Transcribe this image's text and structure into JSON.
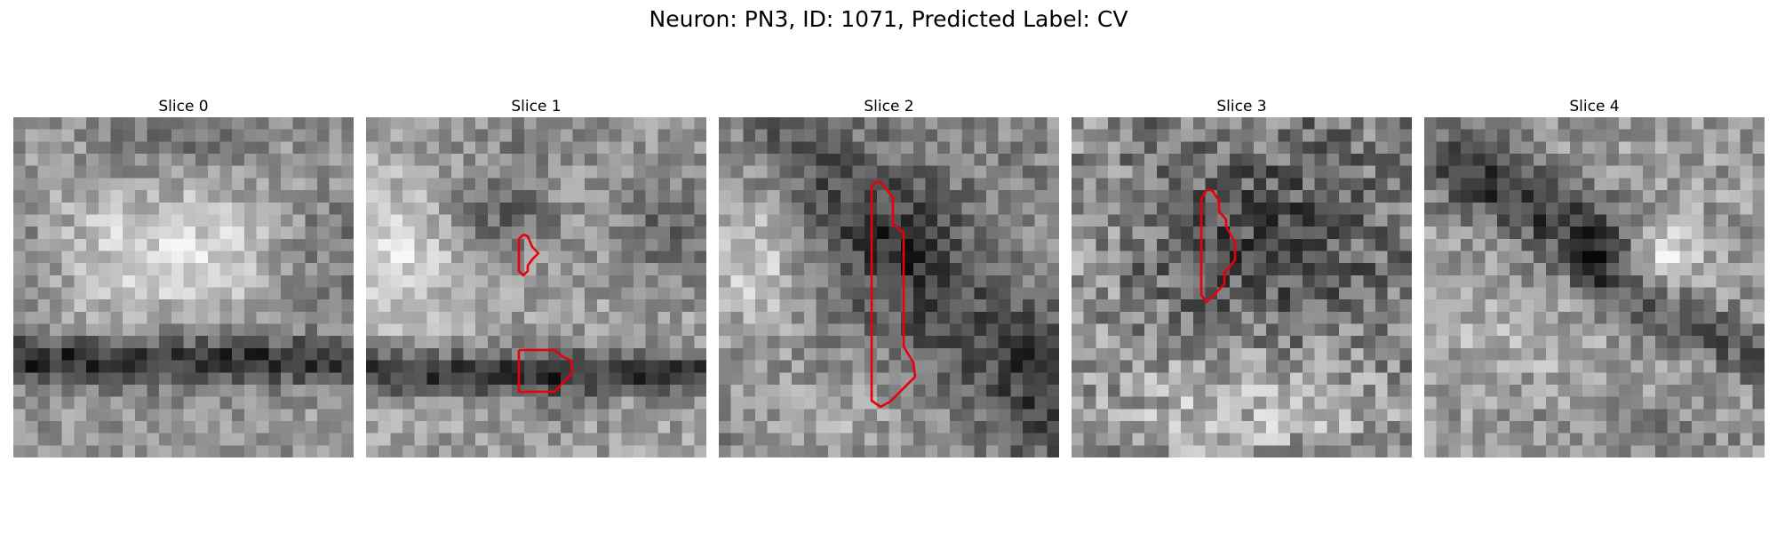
{
  "figure": {
    "title": "Neuron: PN3, ID: 1071, Predicted Label: CV"
  },
  "colors": {
    "background": "#ffffff",
    "contour": "#e8000b",
    "colormap": "grayscale"
  },
  "image": {
    "grid_size": 28
  },
  "panels": [
    {
      "title": "Slice 0",
      "has_contour": false
    },
    {
      "title": "Slice 1",
      "has_contour": true
    },
    {
      "title": "Slice 2",
      "has_contour": true
    },
    {
      "title": "Slice 3",
      "has_contour": true
    },
    {
      "title": "Slice 4",
      "has_contour": false
    }
  ]
}
